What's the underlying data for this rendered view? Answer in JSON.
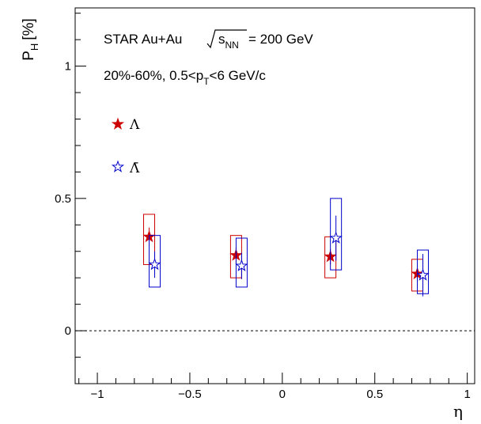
{
  "chart_data": {
    "type": "scatter",
    "title": "",
    "xlabel": "η",
    "ylabel": "P",
    "ylabel_sub": "H",
    "ylabel_unit": "[%]",
    "xlim": [
      -1.12,
      1.04
    ],
    "ylim": [
      -0.2,
      1.22
    ],
    "x_ticks": [
      -1,
      -0.5,
      0,
      0.5,
      1
    ],
    "x_tick_labels": [
      "−1",
      "−0.5",
      "0",
      "0.5",
      "1"
    ],
    "y_ticks": [
      0,
      0.5,
      1
    ],
    "y_tick_labels": [
      "0",
      "0.5",
      "1"
    ],
    "zero_line": true,
    "grid": false,
    "legend_position": "upper-left",
    "annotations": {
      "line1_prefix": "STAR Au+Au",
      "line1_radicand": "s",
      "line1_radicand_sub": "NN",
      "line1_suffix": "= 200 GeV",
      "line2_prefix": "20%-60%, 0.5<p",
      "line2_sub": "T",
      "line2_suffix": "<6 GeV/c"
    },
    "series": [
      {
        "name": "Λ",
        "color": "#cc0000",
        "marker": "filled-star",
        "x": [
          -0.72,
          -0.25,
          0.26,
          0.73
        ],
        "y": [
          0.355,
          0.285,
          0.28,
          0.215
        ],
        "stat_err": [
          0.035,
          0.03,
          0.03,
          0.03
        ],
        "syst_low": [
          0.25,
          0.2,
          0.2,
          0.15
        ],
        "syst_high": [
          0.44,
          0.36,
          0.355,
          0.27
        ]
      },
      {
        "name": "Λ̄",
        "color": "#0000cc",
        "marker": "open-star",
        "x": [
          -0.69,
          -0.22,
          0.29,
          0.76
        ],
        "y": [
          0.25,
          0.245,
          0.35,
          0.21
        ],
        "stat_err": [
          0.05,
          0.05,
          0.085,
          0.08
        ],
        "syst_low": [
          0.165,
          0.165,
          0.23,
          0.14
        ],
        "syst_high": [
          0.36,
          0.35,
          0.5,
          0.305
        ]
      }
    ]
  }
}
